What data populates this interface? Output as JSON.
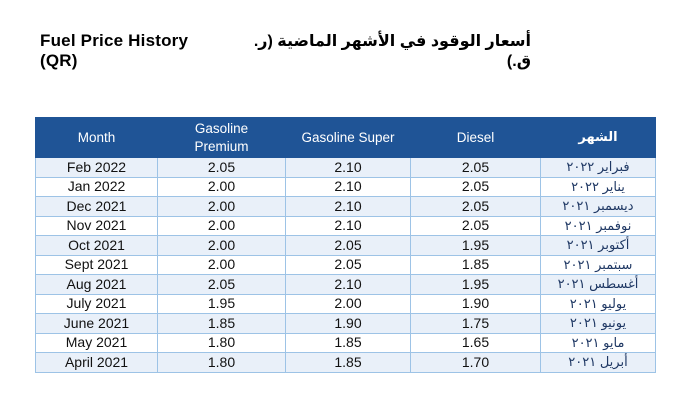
{
  "page": {
    "title_en": "Fuel Price History (QR)",
    "title_ar": "أسعار الوقود في الأشهر الماضية (ر. ق.)"
  },
  "table": {
    "columns": [
      {
        "key": "month",
        "label": "Month"
      },
      {
        "key": "gasoline-premium",
        "label": "Gasoline Premium"
      },
      {
        "key": "gasoline-super",
        "label": "Gasoline Super"
      },
      {
        "key": "diesel",
        "label": "Diesel"
      },
      {
        "key": "month-arabic",
        "label": "الشهر"
      }
    ],
    "rows": [
      [
        "Feb 2022",
        "2.05",
        "2.10",
        "2.05",
        "فبراير ٢٠٢٢"
      ],
      [
        "Jan 2022",
        "2.00",
        "2.10",
        "2.05",
        "يناير ٢٠٢٢"
      ],
      [
        "Dec 2021",
        "2.00",
        "2.10",
        "2.05",
        "ديسمبر ٢٠٢١"
      ],
      [
        "Nov 2021",
        "2.00",
        "2.10",
        "2.05",
        "نوفمبر ٢٠٢١"
      ],
      [
        "Oct 2021",
        "2.00",
        "2.05",
        "1.95",
        "أكتوبر ٢٠٢١"
      ],
      [
        "Sept 2021",
        "2.00",
        "2.05",
        "1.85",
        "سبتمبر ٢٠٢١"
      ],
      [
        "Aug 2021",
        "2.05",
        "2.10",
        "1.95",
        "أغسطس ٢٠٢١"
      ],
      [
        "July 2021",
        "1.95",
        "2.00",
        "1.90",
        "يوليو ٢٠٢١"
      ],
      [
        "June 2021",
        "1.85",
        "1.90",
        "1.75",
        "يونيو ٢٠٢١"
      ],
      [
        "May 2021",
        "1.80",
        "1.85",
        "1.65",
        "مايو ٢٠٢١"
      ],
      [
        "April 2021",
        "1.80",
        "1.85",
        "1.70",
        "أبريل ٢٠٢١"
      ]
    ]
  },
  "colors": {
    "header_bg": "#1F5496",
    "header_text": "#FFFFFF",
    "row_alt_bg": "#E9F0F9",
    "row_bg": "#FFFFFF",
    "border": "#9DC3E6",
    "arabic_text": "#1F3864",
    "data_text": "#111111"
  }
}
